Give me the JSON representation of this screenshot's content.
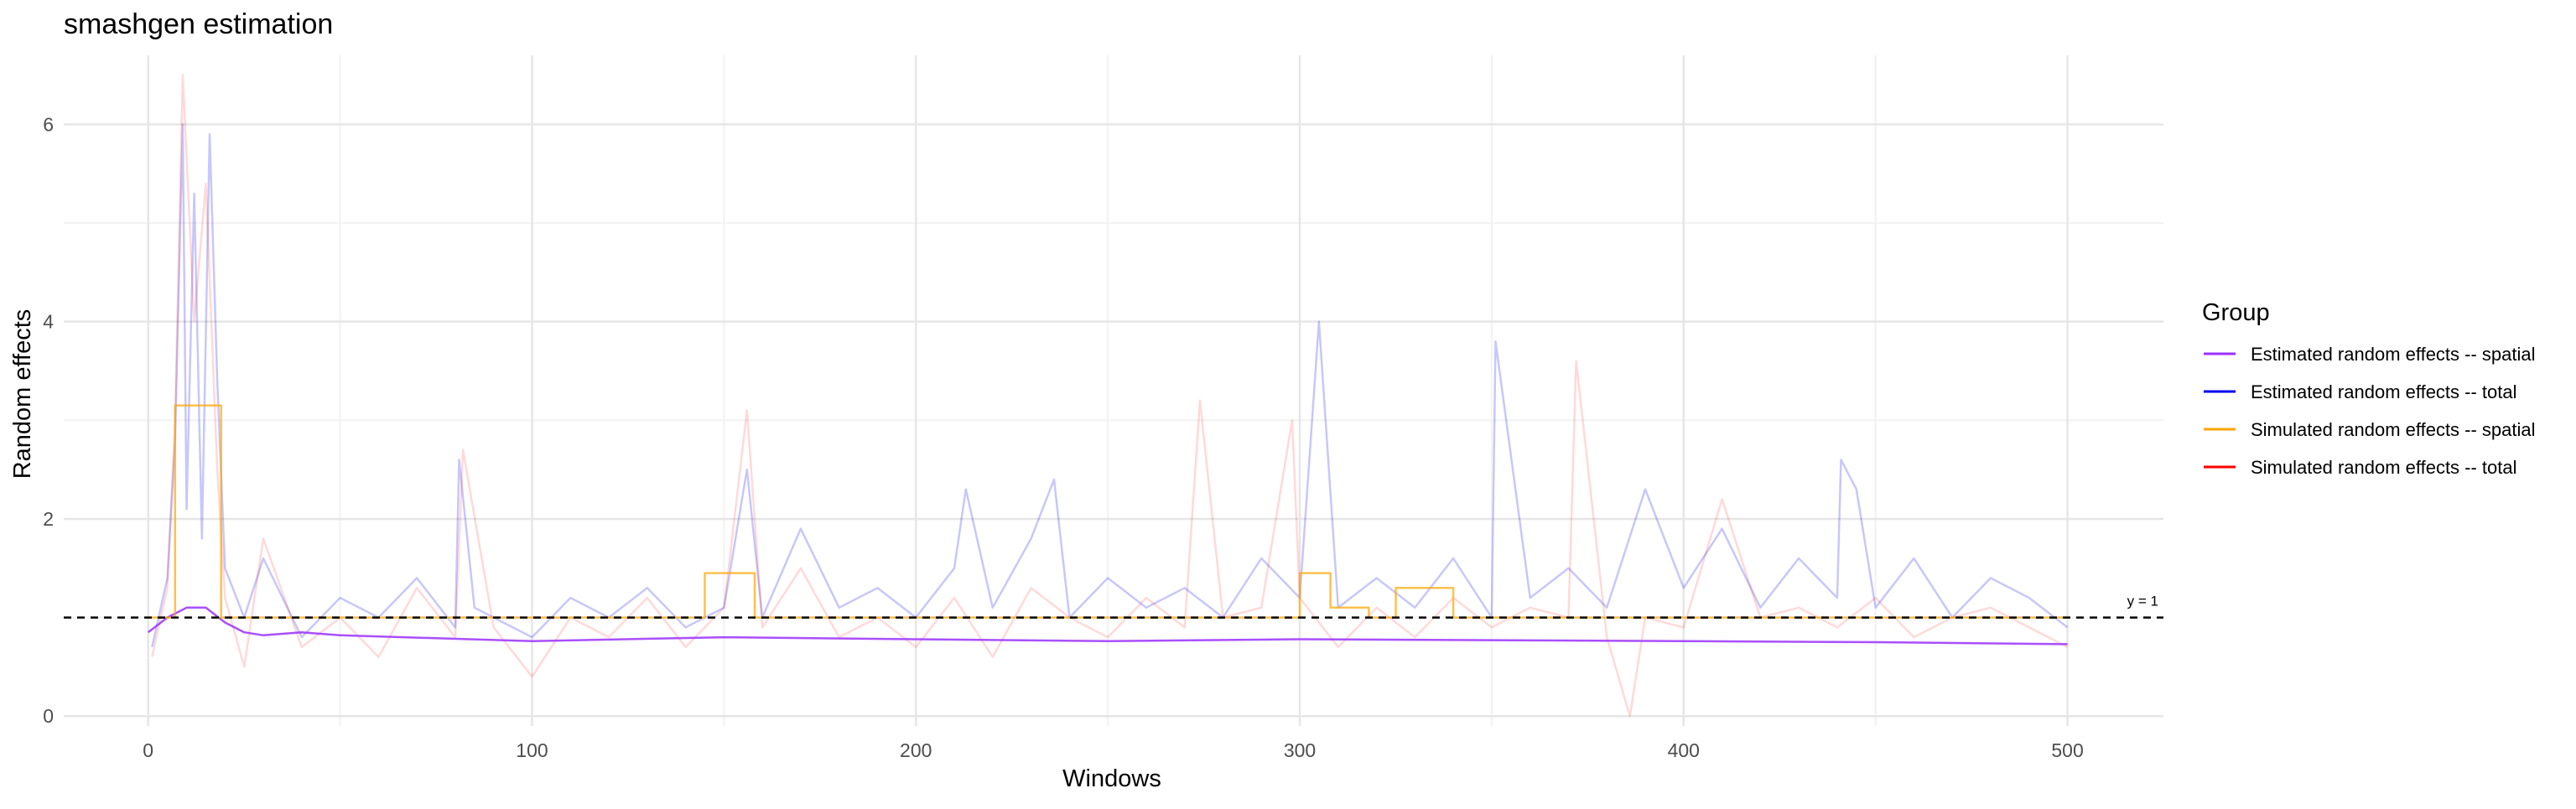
{
  "chart_data": {
    "type": "line",
    "title": "smashgen estimation",
    "xlabel": "Windows",
    "ylabel": "Random effects",
    "xlim": [
      -22,
      525
    ],
    "ylim": [
      -0.1,
      6.7
    ],
    "x_ticks": [
      0,
      100,
      200,
      300,
      400,
      500
    ],
    "y_ticks": [
      0,
      2,
      4,
      6
    ],
    "grid": true,
    "legend": {
      "title": "Group",
      "placement": "right",
      "entries": [
        {
          "label": "Estimated random effects -- spatial",
          "color": "#9B30FF"
        },
        {
          "label": "Estimated random effects -- total",
          "color": "#0000EE"
        },
        {
          "label": "Simulated random effects -- spatial",
          "color": "#FFA500"
        },
        {
          "label": "Simulated random effects -- total",
          "color": "#FF0000"
        }
      ]
    },
    "reference_line": {
      "y": 1,
      "label": "y = 1",
      "style": "dashed"
    },
    "series": [
      {
        "name": "Estimated random effects -- total",
        "color": "#0000EE",
        "opacity": 0.22,
        "x": [
          1,
          5,
          7,
          9,
          10,
          12,
          14,
          16,
          18,
          20,
          25,
          30,
          40,
          50,
          60,
          70,
          80,
          81,
          85,
          90,
          100,
          110,
          120,
          130,
          140,
          150,
          156,
          160,
          170,
          180,
          190,
          200,
          210,
          213,
          220,
          230,
          236,
          240,
          250,
          260,
          270,
          280,
          290,
          300,
          305,
          310,
          320,
          330,
          340,
          350,
          351,
          360,
          370,
          380,
          390,
          400,
          410,
          420,
          430,
          440,
          441,
          445,
          450,
          460,
          470,
          480,
          490,
          500
        ],
        "y": [
          0.7,
          1.4,
          2.8,
          6.0,
          2.1,
          5.3,
          1.8,
          5.9,
          3.4,
          1.5,
          1.0,
          1.6,
          0.8,
          1.2,
          1.0,
          1.4,
          0.9,
          2.6,
          1.1,
          1.0,
          0.8,
          1.2,
          1.0,
          1.3,
          0.9,
          1.1,
          2.5,
          1.0,
          1.9,
          1.1,
          1.3,
          1.0,
          1.5,
          2.3,
          1.1,
          1.8,
          2.4,
          1.0,
          1.4,
          1.1,
          1.3,
          1.0,
          1.6,
          1.2,
          4.0,
          1.1,
          1.4,
          1.1,
          1.6,
          1.0,
          3.8,
          1.2,
          1.5,
          1.1,
          2.3,
          1.3,
          1.9,
          1.1,
          1.6,
          1.2,
          2.6,
          2.3,
          1.1,
          1.6,
          1.0,
          1.4,
          1.2,
          0.9
        ]
      },
      {
        "name": "Simulated random effects -- total",
        "color": "#FF0000",
        "opacity": 0.15,
        "x": [
          1,
          5,
          7,
          9,
          12,
          15,
          18,
          20,
          25,
          30,
          40,
          50,
          60,
          70,
          80,
          82,
          90,
          100,
          110,
          120,
          130,
          140,
          150,
          156,
          160,
          170,
          180,
          190,
          200,
          210,
          220,
          230,
          240,
          250,
          260,
          270,
          274,
          280,
          290,
          298,
          300,
          310,
          320,
          330,
          340,
          350,
          360,
          370,
          372,
          380,
          386,
          390,
          400,
          410,
          420,
          430,
          440,
          450,
          460,
          470,
          480,
          490,
          500
        ],
        "y": [
          0.6,
          1.3,
          3.0,
          6.5,
          4.0,
          5.4,
          2.5,
          1.2,
          0.5,
          1.8,
          0.7,
          1.0,
          0.6,
          1.3,
          0.8,
          2.7,
          0.9,
          0.4,
          1.0,
          0.8,
          1.2,
          0.7,
          1.1,
          3.1,
          0.9,
          1.5,
          0.8,
          1.0,
          0.7,
          1.2,
          0.6,
          1.3,
          1.0,
          0.8,
          1.2,
          0.9,
          3.2,
          1.0,
          1.1,
          3.0,
          1.2,
          0.7,
          1.1,
          0.8,
          1.2,
          0.9,
          1.1,
          1.0,
          3.6,
          0.8,
          0.0,
          1.0,
          0.9,
          2.2,
          1.0,
          1.1,
          0.9,
          1.2,
          0.8,
          1.0,
          1.1,
          0.9,
          0.7
        ]
      },
      {
        "name": "Estimated random effects -- spatial",
        "color": "#9B30FF",
        "opacity": 0.85,
        "x": [
          0,
          5,
          10,
          15,
          20,
          25,
          30,
          40,
          50,
          100,
          150,
          200,
          250,
          300,
          350,
          400,
          450,
          500
        ],
        "y": [
          0.85,
          1.0,
          1.1,
          1.1,
          0.95,
          0.85,
          0.82,
          0.85,
          0.82,
          0.76,
          0.8,
          0.78,
          0.76,
          0.78,
          0.77,
          0.76,
          0.75,
          0.73
        ]
      },
      {
        "name": "Simulated random effects -- spatial",
        "color": "#FFA500",
        "opacity": 0.7,
        "x": [
          0,
          7,
          7,
          19,
          19,
          145,
          145,
          158,
          158,
          300,
          300,
          308,
          308,
          318,
          318,
          325,
          325,
          340,
          340,
          500
        ],
        "y": [
          1.0,
          1.0,
          3.15,
          3.15,
          1.0,
          1.0,
          1.45,
          1.45,
          1.0,
          1.0,
          1.45,
          1.45,
          1.1,
          1.1,
          1.0,
          1.0,
          1.3,
          1.3,
          1.0,
          1.0
        ]
      }
    ]
  }
}
